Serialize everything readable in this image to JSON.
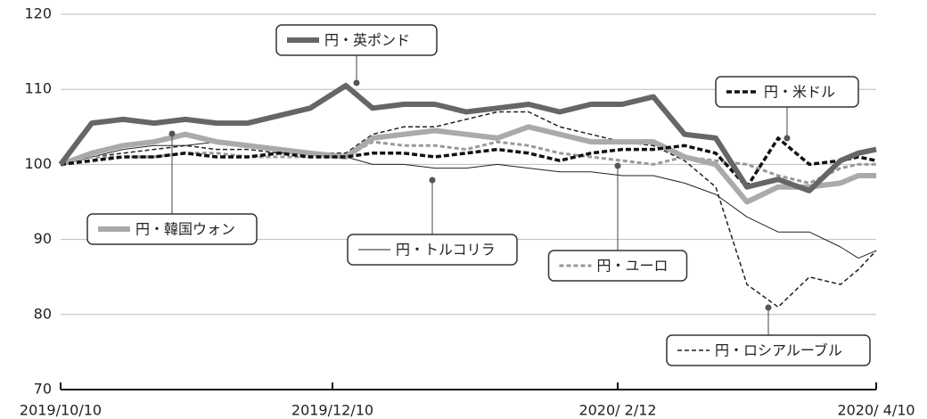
{
  "chart_data": {
    "type": "line",
    "x": [
      "2019-10-10",
      "2019-10-17",
      "2019-10-24",
      "2019-10-31",
      "2019-11-07",
      "2019-11-14",
      "2019-11-21",
      "2019-11-28",
      "2019-12-05",
      "2019-12-13",
      "2019-12-19",
      "2019-12-26",
      "2020-01-02",
      "2020-01-09",
      "2020-01-16",
      "2020-01-23",
      "2020-01-30",
      "2020-02-06",
      "2020-02-13",
      "2020-02-20",
      "2020-02-27",
      "2020-03-05",
      "2020-03-12",
      "2020-03-19",
      "2020-03-26",
      "2020-04-02",
      "2020-04-06",
      "2020-04-10"
    ],
    "series": [
      {
        "name": "円・英ポンド",
        "color": "#666666",
        "values": [
          100,
          105.5,
          106,
          105.5,
          106,
          105.5,
          105.5,
          106.5,
          107.5,
          110.5,
          107.5,
          108,
          108,
          107,
          107.5,
          108,
          107,
          108,
          108,
          109,
          104,
          103.5,
          97,
          98,
          96.5,
          100.5,
          101.5,
          102
        ]
      },
      {
        "name": "円・韓国ウォン",
        "color": "#aaaaaa",
        "values": [
          100,
          101.5,
          102.5,
          103,
          104,
          103,
          102.5,
          102,
          101.5,
          101,
          103.5,
          104,
          104.5,
          104,
          103.5,
          105,
          104,
          103,
          103,
          103,
          101,
          100,
          95,
          97,
          97,
          97.5,
          98.5,
          98.5
        ]
      },
      {
        "name": "円・トルコリラ",
        "color": "#222222",
        "values": [
          100,
          101,
          102,
          102.5,
          102.5,
          103,
          102.5,
          102,
          101.5,
          101,
          100,
          100,
          99.5,
          99.5,
          100,
          99.5,
          99,
          99,
          98.5,
          98.5,
          97.5,
          96,
          93,
          91,
          91,
          89,
          87.5,
          88.5
        ]
      },
      {
        "name": "円・ユーロ",
        "color": "#999999",
        "values": [
          100,
          101,
          101,
          101,
          101.5,
          101.5,
          101,
          101,
          101,
          101,
          103,
          102.5,
          102.5,
          102,
          103,
          102.5,
          101.5,
          101,
          100.5,
          100,
          101,
          100.5,
          100,
          98.5,
          97.5,
          99.5,
          100,
          100
        ]
      },
      {
        "name": "円・米ドル",
        "color": "#111111",
        "values": [
          100,
          100.5,
          101,
          101,
          101.5,
          101,
          101,
          101.5,
          101,
          101,
          101.5,
          101.5,
          101,
          101.5,
          102,
          101.5,
          100.5,
          101.5,
          102,
          102,
          102.5,
          101.5,
          97,
          103.5,
          100,
          100.5,
          101,
          100.5
        ]
      },
      {
        "name": "円・ロシアルーブル",
        "color": "#222222",
        "values": [
          100,
          101,
          101.5,
          102,
          102.5,
          102,
          102,
          101.5,
          101.5,
          101.5,
          104,
          105,
          105,
          106,
          107,
          107,
          105,
          104,
          103,
          102.5,
          100.5,
          97,
          84,
          81,
          85,
          84,
          86,
          88.5
        ]
      }
    ],
    "xlim": [
      "2019-10-10",
      "2020-04-10"
    ],
    "xticks": [
      {
        "value": "2019-10-10",
        "label": "2019/10/10"
      },
      {
        "value": "2019-12-10",
        "label": "2019/12/10"
      },
      {
        "value": "2020-02-12",
        "label": "2020/ 2/12"
      },
      {
        "value": "2020-04-10",
        "label": "2020/ 4/10"
      }
    ],
    "ylim": [
      70,
      120
    ],
    "yticks": [
      70,
      80,
      90,
      100,
      110,
      120
    ],
    "grid": true
  }
}
